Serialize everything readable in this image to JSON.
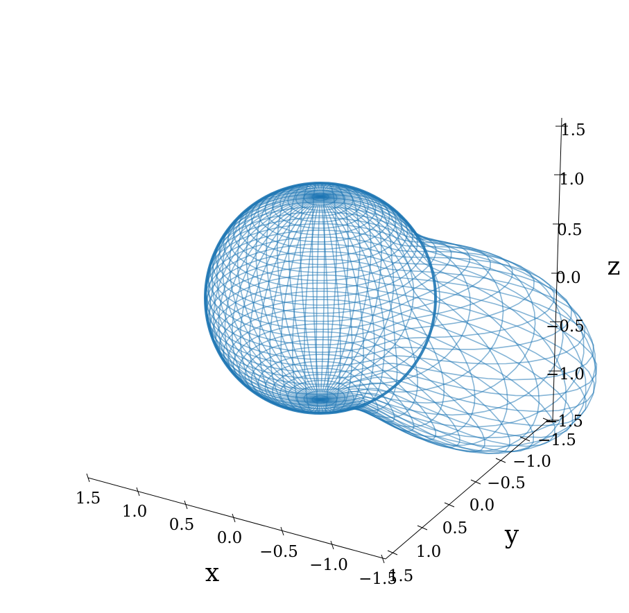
{
  "chart_data": {
    "type": "surface-wireframe-3d",
    "title": "",
    "xlabel": "x",
    "ylabel": "y",
    "zlabel": "z",
    "xlim": [
      -1.5,
      1.5
    ],
    "ylim": [
      -1.5,
      1.5
    ],
    "zlim": [
      -1.5,
      1.5
    ],
    "x_ticks": [
      "1.5",
      "1.0",
      "0.5",
      "0.0",
      "−0.5",
      "−1.0",
      "−1.5"
    ],
    "y_ticks": [
      "−1.5",
      "−1.0",
      "−0.5",
      "0.0",
      "0.5",
      "1.0",
      "1.5"
    ],
    "z_ticks": [
      "1.5",
      "1.0",
      "0.5",
      "0.0",
      "−0.5",
      "−1.0",
      "−1.5"
    ],
    "surface": {
      "description_shape": "unit sphere with a tapered lobe extending toward +x/+y",
      "sphere_radius": 1.0,
      "lobe_length": 1.0
    },
    "series": [
      {
        "color": "#1f77b4"
      }
    ],
    "grid": false
  }
}
